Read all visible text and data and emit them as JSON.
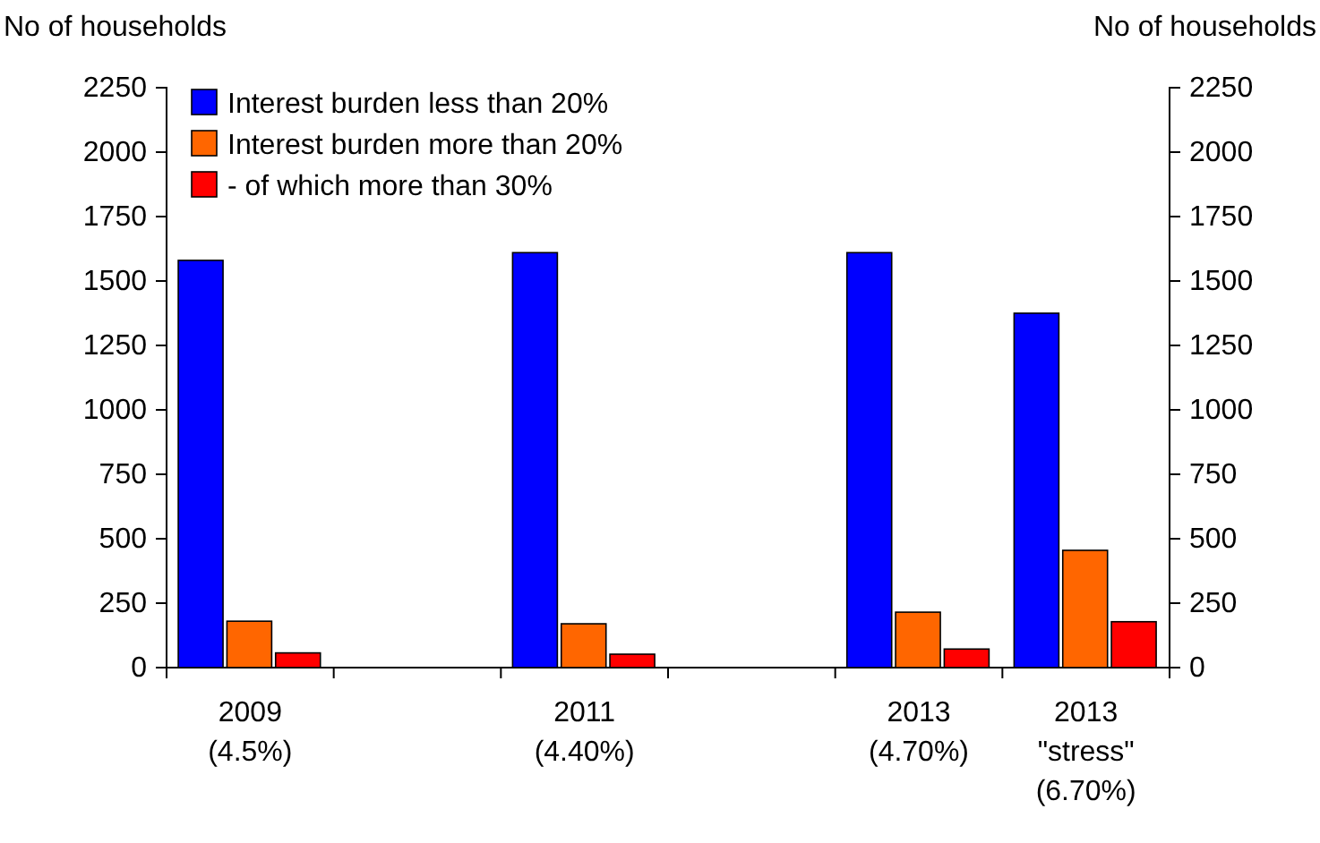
{
  "chart_data": {
    "type": "bar",
    "ylabel": "No of households",
    "y2label": "No of households",
    "categories": [
      "2009\n(4.5%)",
      null,
      "2011\n(4.40%)",
      null,
      "2013\n(4.70%)",
      "2013\n\"stress\"\n(6.70%)"
    ],
    "series": [
      {
        "name": "Interest burden less than 20%",
        "color": "#0000ff",
        "values": [
          1580,
          null,
          1610,
          null,
          1610,
          1375
        ]
      },
      {
        "name": "Interest burden more than 20%",
        "color": "#ff6600",
        "values": [
          180,
          null,
          170,
          null,
          215,
          455
        ]
      },
      {
        "name": "- of which more than 30%",
        "color": "#ff0000",
        "values": [
          57,
          null,
          52,
          null,
          72,
          178
        ]
      }
    ],
    "ylim": [
      0,
      2250
    ],
    "yticks": [
      0,
      250,
      500,
      750,
      1000,
      1250,
      1500,
      1750,
      2000,
      2250
    ],
    "y2lim": [
      0,
      2250
    ],
    "y2ticks": [
      0,
      250,
      500,
      750,
      1000,
      1250,
      1500,
      1750,
      2000,
      2250
    ],
    "grid": false,
    "legend": "top left"
  }
}
